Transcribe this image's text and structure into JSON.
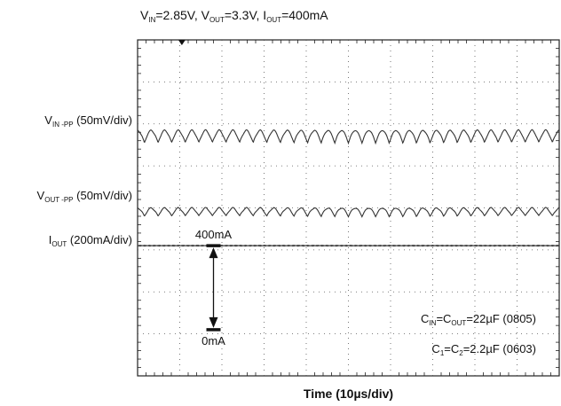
{
  "chart_data": {
    "type": "line",
    "title_parts": [
      {
        "t": "V",
        "k": "n"
      },
      {
        "t": "IN",
        "k": "s"
      },
      {
        "t": "=2.85V, V",
        "k": "n"
      },
      {
        "t": "OUT",
        "k": "s"
      },
      {
        "t": "=3.3V, I",
        "k": "n"
      },
      {
        "t": "OUT",
        "k": "s"
      },
      {
        "t": "=400mA",
        "k": "n"
      }
    ],
    "xlabel": "Time (10µs/div)",
    "divisions": {
      "x": 10,
      "y": 8
    },
    "grid": true,
    "channels": [
      {
        "id": "vin",
        "label_parts": [
          {
            "t": "V",
            "k": "n"
          },
          {
            "t": "IN -PP",
            "k": "s"
          },
          {
            "t": " (50mV/div)",
            "k": "n"
          }
        ],
        "baseline_div": 2.3,
        "ripple_cycles": 31,
        "ripple_pp_div": 0.3,
        "color": "#333333"
      },
      {
        "id": "vout",
        "label_parts": [
          {
            "t": "V",
            "k": "n"
          },
          {
            "t": "OUT -PP",
            "k": "s"
          },
          {
            "t": " (50mV/div)",
            "k": "n"
          }
        ],
        "baseline_div": 4.1,
        "ripple_cycles": 31,
        "ripple_pp_div": 0.2,
        "color": "#333333"
      },
      {
        "id": "iout",
        "label_parts": [
          {
            "t": "I",
            "k": "n"
          },
          {
            "t": "OUT",
            "k": "s"
          },
          {
            "t": " (200mA/div)",
            "k": "n"
          }
        ],
        "baseline_div": 4.9,
        "ripple_cycles": 0,
        "ripple_pp_div": 0.02,
        "color": "#333333"
      }
    ],
    "annotations": {
      "top_label": "400mA",
      "bottom_label": "0mA",
      "arrow_from_div": 4.9,
      "arrow_to_div": 6.9,
      "arrow_x_div": 1.8
    },
    "notes": [
      [
        {
          "t": "C",
          "k": "n"
        },
        {
          "t": "IN",
          "k": "s"
        },
        {
          "t": "=C",
          "k": "n"
        },
        {
          "t": "OUT",
          "k": "s"
        },
        {
          "t": "=22µF (0805)",
          "k": "n"
        }
      ],
      [
        {
          "t": "C",
          "k": "n"
        },
        {
          "t": "1",
          "k": "s"
        },
        {
          "t": "=C",
          "k": "n"
        },
        {
          "t": "2",
          "k": "s"
        },
        {
          "t": "=2.2µF (0603)",
          "k": "n"
        }
      ]
    ]
  }
}
